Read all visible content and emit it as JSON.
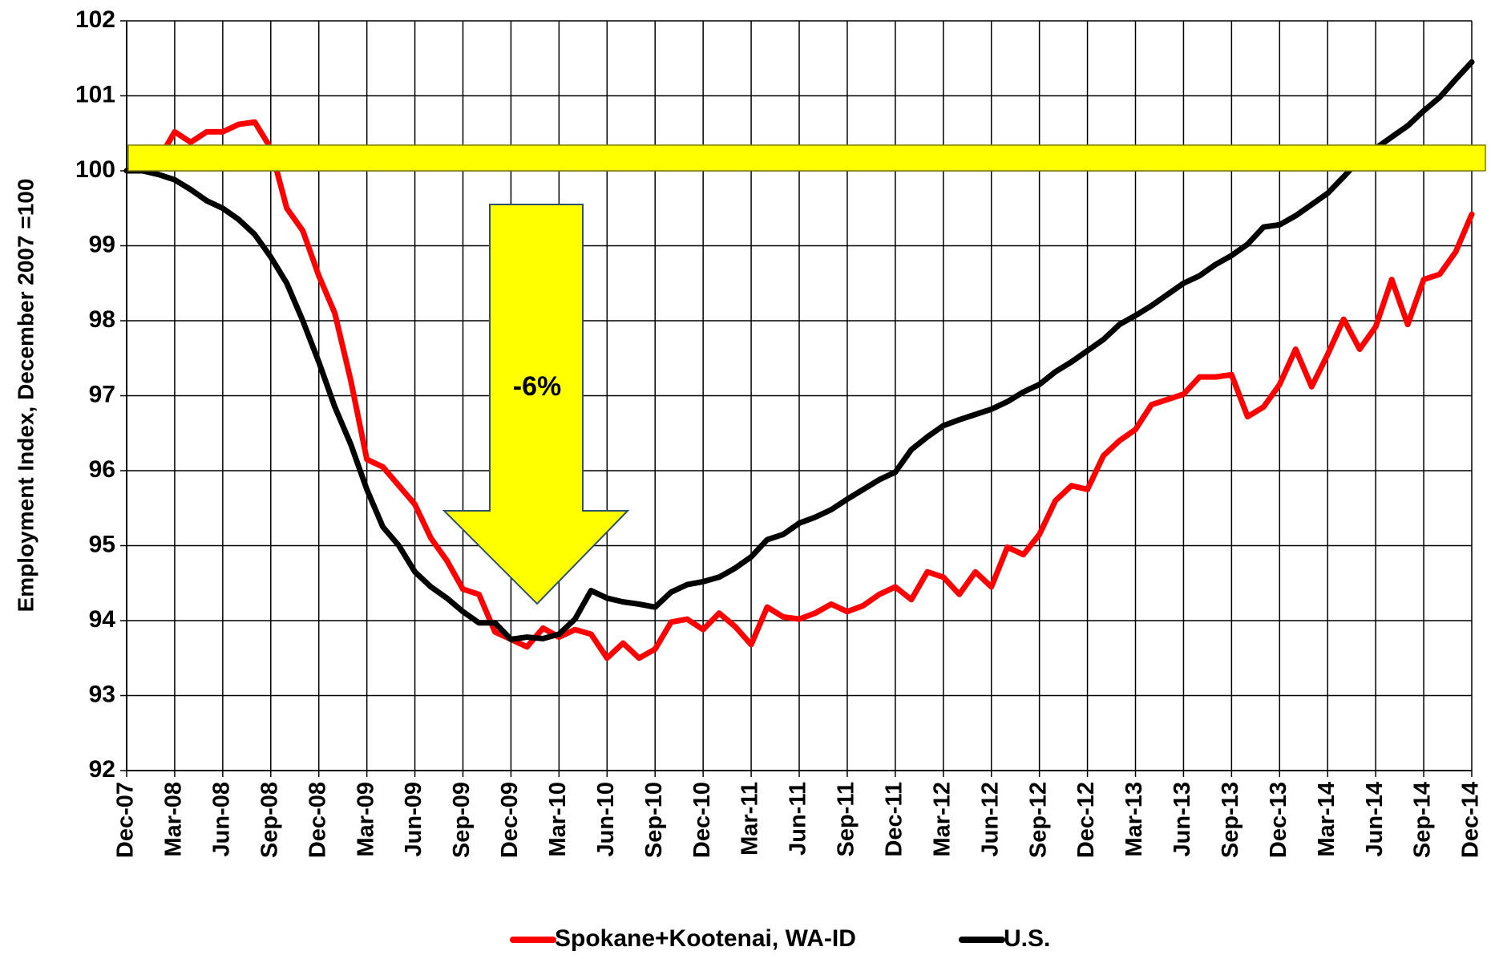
{
  "chart_data": {
    "type": "line",
    "ylabel": "Employment Index, December 2007 =100",
    "annotation": "-6%",
    "categories": [
      "Dec-07",
      null,
      null,
      "Mar-08",
      null,
      null,
      "Jun-08",
      null,
      null,
      "Sep-08",
      null,
      null,
      "Dec-08",
      null,
      null,
      "Mar-09",
      null,
      null,
      "Jun-09",
      null,
      null,
      "Sep-09",
      null,
      null,
      "Dec-09",
      null,
      null,
      "Mar-10",
      null,
      null,
      "Jun-10",
      null,
      null,
      "Sep-10",
      null,
      null,
      "Dec-10",
      null,
      null,
      "Mar-11",
      null,
      null,
      "Jun-11",
      null,
      null,
      "Sep-11",
      null,
      null,
      "Dec-11",
      null,
      null,
      "Mar-12",
      null,
      null,
      "Jun-12",
      null,
      null,
      "Sep-12",
      null,
      null,
      "Dec-12",
      null,
      null,
      "Mar-13",
      null,
      null,
      "Jun-13",
      null,
      null,
      "Sep-13",
      null,
      null,
      "Dec-13",
      null,
      null,
      "Mar-14",
      null,
      null,
      "Jun-14",
      null,
      null,
      "Sep-14",
      null,
      null,
      "Dec-14"
    ],
    "series": [
      {
        "name": "Spokane+Kootenai, WA-ID",
        "color": "#ff0000",
        "values": [
          100,
          100.05,
          100.15,
          100.52,
          100.38,
          100.52,
          100.52,
          100.62,
          100.65,
          100.3,
          99.5,
          99.2,
          98.6,
          98.1,
          97.2,
          96.15,
          96.05,
          95.8,
          95.55,
          95.1,
          94.8,
          94.42,
          94.35,
          93.85,
          93.75,
          93.65,
          93.9,
          93.78,
          93.88,
          93.82,
          93.5,
          93.7,
          93.5,
          93.62,
          93.98,
          94.02,
          93.88,
          94.1,
          93.92,
          93.68,
          94.18,
          94.05,
          94.02,
          94.1,
          94.22,
          94.12,
          94.2,
          94.35,
          94.45,
          94.28,
          94.65,
          94.58,
          94.35,
          94.65,
          94.45,
          94.98,
          94.88,
          95.15,
          95.6,
          95.8,
          95.75,
          96.2,
          96.4,
          96.55,
          96.88,
          96.95,
          97.02,
          97.25,
          97.25,
          97.28,
          96.72,
          96.85,
          97.15,
          97.62,
          97.12,
          97.55,
          98.02,
          97.62,
          97.92,
          98.55,
          97.95,
          98.55,
          98.62,
          98.92,
          99.42
        ]
      },
      {
        "name": "U.S.",
        "color": "#000000",
        "values": [
          100,
          100.0,
          99.95,
          99.88,
          99.75,
          99.6,
          99.5,
          99.35,
          99.15,
          98.85,
          98.5,
          98.0,
          97.45,
          96.85,
          96.35,
          95.75,
          95.25,
          95.0,
          94.65,
          94.45,
          94.3,
          94.12,
          93.97,
          93.97,
          93.75,
          93.78,
          93.76,
          93.82,
          94.02,
          94.4,
          94.3,
          94.25,
          94.22,
          94.18,
          94.38,
          94.48,
          94.52,
          94.58,
          94.7,
          94.85,
          95.08,
          95.15,
          95.3,
          95.38,
          95.48,
          95.62,
          95.75,
          95.88,
          95.98,
          96.28,
          96.45,
          96.6,
          96.68,
          96.75,
          96.82,
          96.92,
          97.05,
          97.15,
          97.32,
          97.45,
          97.6,
          97.75,
          97.95,
          98.07,
          98.2,
          98.35,
          98.5,
          98.6,
          98.75,
          98.87,
          99.02,
          99.25,
          99.28,
          99.4,
          99.55,
          99.7,
          99.92,
          100.15,
          100.3,
          100.45,
          100.6,
          100.8,
          100.98,
          101.22,
          101.45
        ]
      }
    ],
    "ylim": [
      92,
      102
    ],
    "yticks": [
      92,
      93,
      94,
      95,
      96,
      97,
      98,
      99,
      100,
      101,
      102
    ],
    "grid": true,
    "legend": "bottom"
  }
}
